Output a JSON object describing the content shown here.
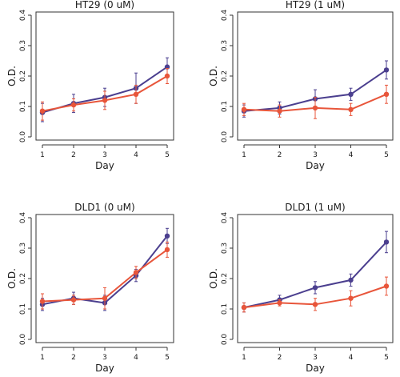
{
  "chart_data": [
    {
      "type": "line",
      "title": "HT29 (0 uM)",
      "xlabel": "Day",
      "ylabel": "O.D.",
      "x": [
        1,
        2,
        3,
        4,
        5
      ],
      "xticks": [
        "1",
        "2",
        "3",
        "4",
        "5"
      ],
      "yticks": [
        "0.0",
        "0.1",
        "0.2",
        "0.3",
        "0.4"
      ],
      "ylim": [
        0,
        0.4
      ],
      "grid": false,
      "series": [
        {
          "color": "#4b3f8f",
          "values": [
            0.08,
            0.11,
            0.13,
            0.16,
            0.23
          ],
          "errors": [
            0.03,
            0.03,
            0.03,
            0.05,
            0.03
          ]
        },
        {
          "color": "#e8553a",
          "values": [
            0.085,
            0.105,
            0.12,
            0.14,
            0.2
          ],
          "errors": [
            0.03,
            0.02,
            0.03,
            0.03,
            0.025
          ]
        }
      ]
    },
    {
      "type": "line",
      "title": "HT29 (1 uM)",
      "xlabel": "Day",
      "ylabel": "O.D.",
      "x": [
        1,
        2,
        3,
        4,
        5
      ],
      "xticks": [
        "1",
        "2",
        "3",
        "4",
        "5"
      ],
      "yticks": [
        "0.0",
        "0.1",
        "0.2",
        "0.3",
        "0.4"
      ],
      "ylim": [
        0,
        0.4
      ],
      "grid": false,
      "series": [
        {
          "color": "#4b3f8f",
          "values": [
            0.085,
            0.095,
            0.125,
            0.14,
            0.22
          ],
          "errors": [
            0.02,
            0.02,
            0.03,
            0.02,
            0.03
          ]
        },
        {
          "color": "#e8553a",
          "values": [
            0.09,
            0.085,
            0.095,
            0.09,
            0.14
          ],
          "errors": [
            0.02,
            0.02,
            0.035,
            0.02,
            0.03
          ]
        }
      ]
    },
    {
      "type": "line",
      "title": "DLD1 (0 uM)",
      "xlabel": "Day",
      "ylabel": "O.D.",
      "x": [
        1,
        2,
        3,
        4,
        5
      ],
      "xticks": [
        "1",
        "2",
        "3",
        "4",
        "5"
      ],
      "yticks": [
        "0.0",
        "0.1",
        "0.2",
        "0.3",
        "0.4"
      ],
      "ylim": [
        0,
        0.4
      ],
      "grid": false,
      "series": [
        {
          "color": "#4b3f8f",
          "values": [
            0.115,
            0.135,
            0.12,
            0.21,
            0.34
          ],
          "errors": [
            0.02,
            0.02,
            0.025,
            0.02,
            0.025
          ]
        },
        {
          "color": "#e8553a",
          "values": [
            0.125,
            0.13,
            0.135,
            0.22,
            0.295
          ],
          "errors": [
            0.025,
            0.015,
            0.035,
            0.02,
            0.025
          ]
        }
      ]
    },
    {
      "type": "line",
      "title": "DLD1 (1 uM)",
      "xlabel": "Day",
      "ylabel": "O.D.",
      "x": [
        1,
        2,
        3,
        4,
        5
      ],
      "xticks": [
        "1",
        "2",
        "3",
        "4",
        "5"
      ],
      "yticks": [
        "0.0",
        "0.1",
        "0.2",
        "0.3",
        "0.4"
      ],
      "ylim": [
        0,
        0.4
      ],
      "grid": false,
      "series": [
        {
          "color": "#4b3f8f",
          "values": [
            0.105,
            0.13,
            0.17,
            0.195,
            0.32
          ],
          "errors": [
            0.015,
            0.015,
            0.02,
            0.02,
            0.035
          ]
        },
        {
          "color": "#e8553a",
          "values": [
            0.105,
            0.12,
            0.115,
            0.135,
            0.175
          ],
          "errors": [
            0.015,
            0.01,
            0.02,
            0.025,
            0.03
          ]
        }
      ]
    }
  ]
}
